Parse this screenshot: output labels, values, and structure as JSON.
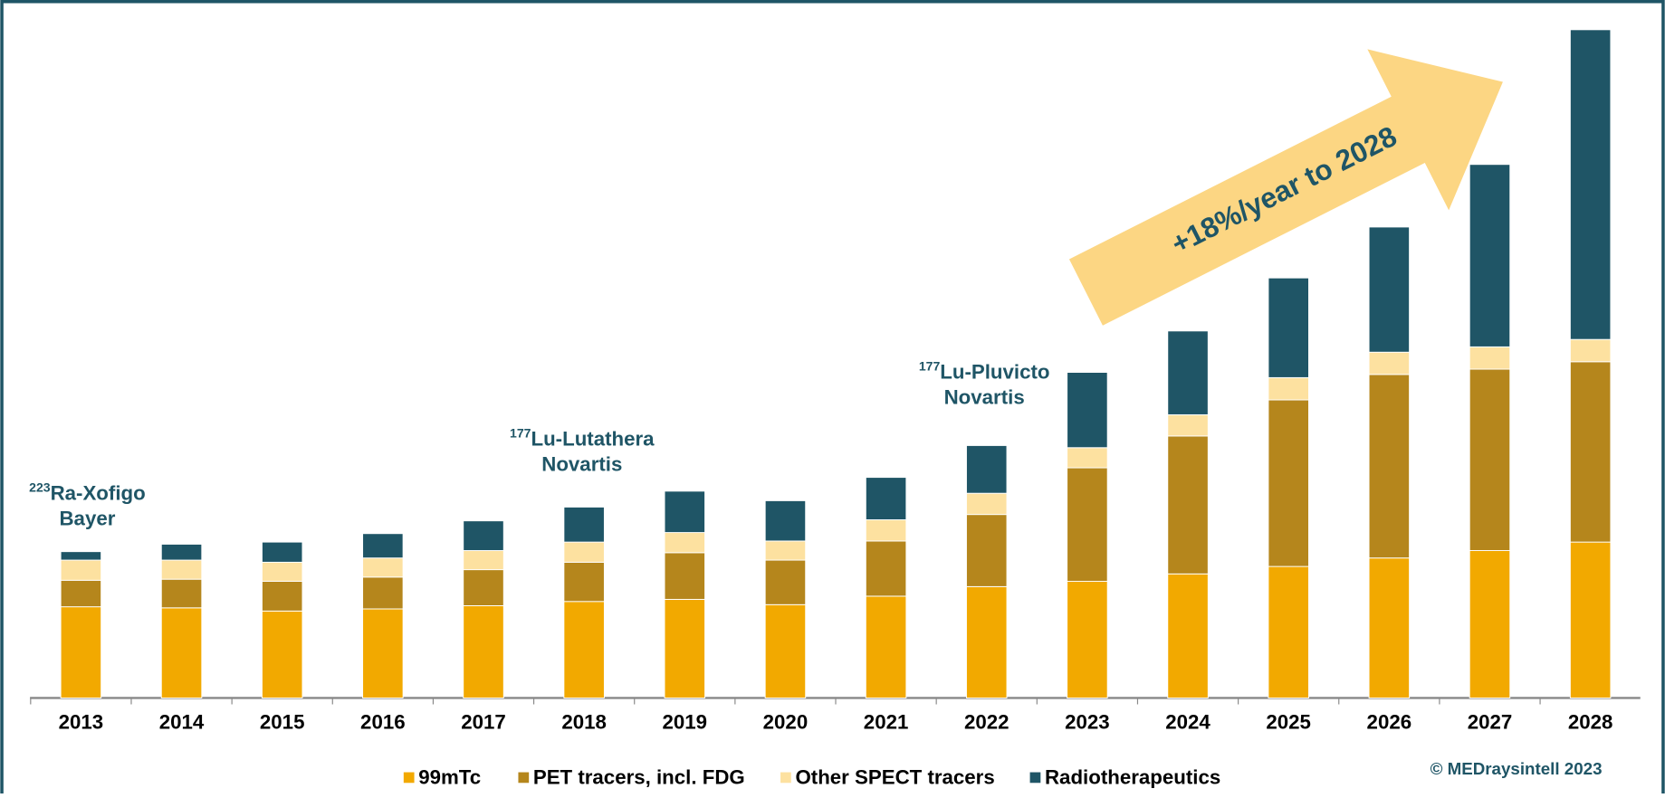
{
  "chart_data": {
    "type": "stacked_bar",
    "categories": [
      "2013",
      "2014",
      "2015",
      "2016",
      "2017",
      "2018",
      "2019",
      "2020",
      "2021",
      "2022",
      "2023",
      "2024",
      "2025",
      "2026",
      "2027",
      "2028"
    ],
    "series": [
      {
        "name": "99mTc",
        "color": "#f2a900",
        "values": [
          86,
          85,
          82,
          84,
          87,
          91,
          93,
          88,
          96,
          105,
          110,
          117,
          124,
          132,
          139,
          147
        ]
      },
      {
        "name": "PET tracers, incl. FDG",
        "color": "#b5861c",
        "values": [
          25,
          27,
          28,
          30,
          34,
          37,
          44,
          42,
          52,
          68,
          107,
          130,
          157,
          173,
          171,
          170
        ]
      },
      {
        "name": "Other SPECT tracers",
        "color": "#fde1a0",
        "values": [
          19,
          18,
          18,
          18,
          18,
          19,
          19,
          18,
          20,
          20,
          19,
          20,
          21,
          21,
          21,
          21
        ]
      },
      {
        "name": "Radiotherapeutics",
        "color": "#1f5566",
        "values": [
          8,
          15,
          19,
          23,
          28,
          33,
          39,
          38,
          40,
          45,
          71,
          79,
          94,
          118,
          172,
          292
        ]
      }
    ],
    "annotations": [
      {
        "sup": "223",
        "text": "Ra-Xofigo",
        "line2": "Bayer"
      },
      {
        "sup": "177",
        "text": "Lu-Lutathera",
        "line2": "Novartis"
      },
      {
        "sup": "177",
        "text": "Lu-Pluvicto",
        "line2": "Novartis"
      }
    ],
    "arrow_label": "+18%/year to 2028",
    "copyright": "© MEDraysintell 2023"
  }
}
